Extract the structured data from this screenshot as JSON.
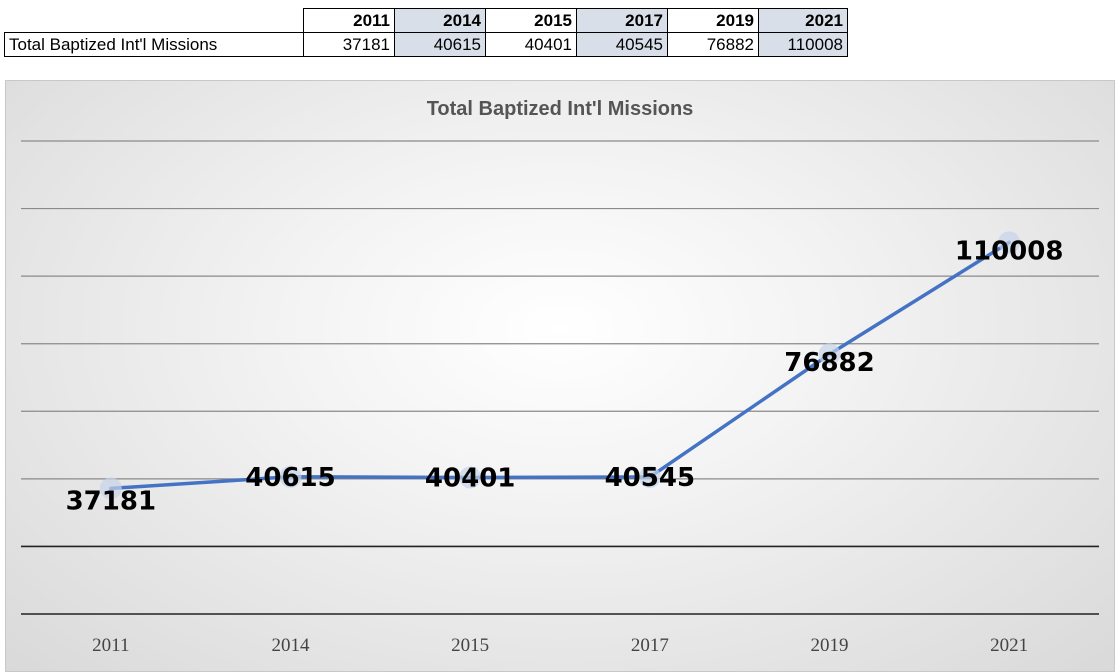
{
  "table": {
    "years": [
      "2011",
      "2014",
      "2015",
      "2017",
      "2019",
      "2021"
    ],
    "row_label": "Total Baptized Int'l Missions",
    "values": [
      "37181",
      "40615",
      "40401",
      "40545",
      "76882",
      "110008"
    ]
  },
  "chart_data": {
    "type": "line",
    "title": "Total Baptized Int'l Missions",
    "categories": [
      "2011",
      "2014",
      "2015",
      "2017",
      "2019",
      "2021"
    ],
    "values": [
      37181,
      40615,
      40401,
      40545,
      76882,
      110008
    ],
    "data_labels": [
      "37181",
      "40615",
      "40401",
      "40545",
      "76882",
      "110008"
    ],
    "ylim": [
      0,
      140000
    ],
    "y_gridlines": [
      0,
      20000,
      40000,
      60000,
      80000,
      100000,
      120000,
      140000
    ],
    "grid": true,
    "legend": "none",
    "line_color": "#4472c4"
  }
}
